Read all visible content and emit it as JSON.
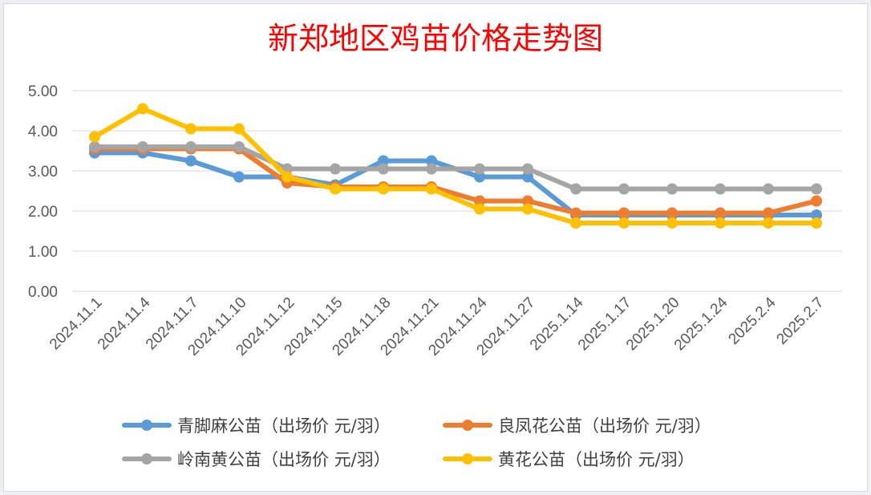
{
  "chart_data": {
    "type": "line",
    "title": "新郑地区鸡苗价格走势图",
    "xlabel": "",
    "ylabel": "",
    "ylim": [
      0,
      5
    ],
    "yticks": [
      "0.00",
      "1.00",
      "2.00",
      "3.00",
      "4.00",
      "5.00"
    ],
    "grid": true,
    "legend_position": "bottom",
    "categories": [
      "2024.11.1",
      "2024.11.4",
      "2024.11.7",
      "2024.11.10",
      "2024.11.12",
      "2024.11.15",
      "2024.11.18",
      "2024.11.21",
      "2024.11.24",
      "2024.11.27",
      "2025.1.14",
      "2025.1.17",
      "2025.1.20",
      "2025.1.24",
      "2025.2.4",
      "2025.2.7"
    ],
    "series": [
      {
        "name": "青脚麻公苗（出场价 元/羽）",
        "color": "#5b9bd5",
        "values": [
          3.45,
          3.45,
          3.25,
          2.85,
          2.85,
          2.65,
          3.25,
          3.25,
          2.85,
          2.85,
          1.9,
          1.9,
          1.9,
          1.9,
          1.9,
          1.9
        ]
      },
      {
        "name": "良凤花公苗（出场价 元/羽）",
        "color": "#ed7d31",
        "values": [
          3.55,
          3.55,
          3.55,
          3.55,
          2.7,
          2.6,
          2.6,
          2.6,
          2.25,
          2.25,
          1.95,
          1.95,
          1.95,
          1.95,
          1.95,
          2.25
        ]
      },
      {
        "name": "岭南黄公苗（出场价 元/羽）",
        "color": "#a5a5a5",
        "values": [
          3.6,
          3.6,
          3.6,
          3.6,
          3.05,
          3.05,
          3.05,
          3.05,
          3.05,
          3.05,
          2.55,
          2.55,
          2.55,
          2.55,
          2.55,
          2.55
        ]
      },
      {
        "name": "黄花公苗（出场价 元/羽）",
        "color": "#ffc000",
        "values": [
          3.85,
          4.55,
          4.05,
          4.05,
          2.85,
          2.55,
          2.55,
          2.55,
          2.05,
          2.05,
          1.7,
          1.7,
          1.7,
          1.7,
          1.7,
          1.7
        ]
      }
    ]
  }
}
